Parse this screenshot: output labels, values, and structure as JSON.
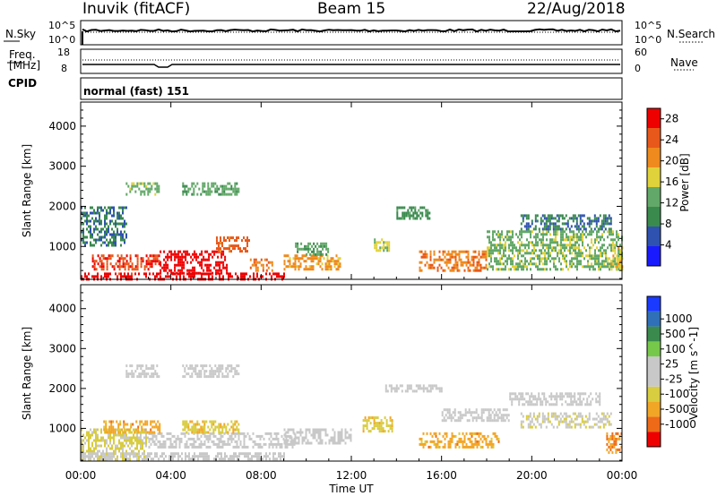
{
  "header": {
    "station": "Inuvik (fitACF)",
    "beam": "Beam 15",
    "date": "22/Aug/2018"
  },
  "top_panels": {
    "nsky_label": "N.Sky",
    "nsky_ticks": [
      "10^5",
      "10^0"
    ],
    "nsearch_label": "N.Search",
    "nsearch_ticks": [
      "10^5",
      "10^0"
    ],
    "freq_label_line1": "Freq.",
    "freq_label_line2": "[MHz]",
    "freq_ticks": [
      "18",
      "8"
    ],
    "nave_label": "Nave",
    "nave_ticks": [
      "60",
      "0"
    ],
    "cpid_label": "CPID",
    "cpid_text": "normal (fast) 151"
  },
  "chart_data": [
    {
      "type": "heatmap",
      "title": "",
      "ylabel": "Slant Range [km]",
      "xlabel": "",
      "x_ticks": [
        "00:00",
        "04:00",
        "08:00",
        "12:00",
        "16:00",
        "20:00",
        "00:00"
      ],
      "xlim_hours": [
        0,
        24
      ],
      "y_ticks": [
        1000,
        2000,
        3000,
        4000
      ],
      "ylim": [
        180,
        4600
      ],
      "colorbar": {
        "label": "Power [dB]",
        "ticks": [
          "4",
          "8",
          "12",
          "16",
          "20",
          "24",
          "28"
        ],
        "range": [
          0,
          30
        ],
        "colors": [
          "#1a1aff",
          "#2f52b0",
          "#3a8a4e",
          "#62a868",
          "#e0d23a",
          "#ee8a1e",
          "#e8581a",
          "#ee0000"
        ]
      },
      "regions": [
        {
          "x": [
            0.0,
            9.0
          ],
          "y": [
            200,
            350
          ],
          "value": 28
        },
        {
          "x": [
            0.5,
            3.5
          ],
          "y": [
            400,
            800
          ],
          "value": 26
        },
        {
          "x": [
            3.5,
            6.5
          ],
          "y": [
            350,
            900
          ],
          "value": 29
        },
        {
          "x": [
            6.0,
            7.5
          ],
          "y": [
            900,
            1250
          ],
          "value": 24
        },
        {
          "x": [
            7.5,
            8.5
          ],
          "y": [
            400,
            700
          ],
          "value": 22
        },
        {
          "x": [
            9.0,
            11.5
          ],
          "y": [
            400,
            800
          ],
          "value": 20
        },
        {
          "x": [
            9.5,
            11.0
          ],
          "y": [
            800,
            1100
          ],
          "value": 12
        },
        {
          "x": [
            13.0,
            13.7
          ],
          "y": [
            900,
            1200
          ],
          "value": 16
        },
        {
          "x": [
            15.0,
            18.0
          ],
          "y": [
            400,
            900
          ],
          "value": 22
        },
        {
          "x": [
            14.0,
            15.5
          ],
          "y": [
            1700,
            2000
          ],
          "value": 10
        },
        {
          "x": [
            18.0,
            24.0
          ],
          "y": [
            400,
            1400
          ],
          "value": 14
        },
        {
          "x": [
            19.5,
            23.5
          ],
          "y": [
            1400,
            1800
          ],
          "value": 8
        },
        {
          "x": [
            0.0,
            2.0
          ],
          "y": [
            1000,
            2000
          ],
          "value": 8
        },
        {
          "x": [
            2.0,
            3.5
          ],
          "y": [
            2300,
            2600
          ],
          "value": 14
        },
        {
          "x": [
            4.5,
            7.0
          ],
          "y": [
            2300,
            2600
          ],
          "value": 12
        },
        {
          "x": [
            23.5,
            24.0
          ],
          "y": [
            400,
            1000
          ],
          "value": 18
        }
      ]
    },
    {
      "type": "heatmap",
      "title": "",
      "ylabel": "Slant Range [km]",
      "xlabel": "Time UT",
      "x_ticks": [
        "00:00",
        "04:00",
        "08:00",
        "12:00",
        "16:00",
        "20:00",
        "00:00"
      ],
      "xlim_hours": [
        0,
        24
      ],
      "y_ticks": [
        1000,
        2000,
        3000,
        4000
      ],
      "ylim": [
        180,
        4600
      ],
      "colorbar": {
        "label": "Velocity [m s^-1]",
        "ticks": [
          "1000",
          "500",
          "100",
          "25",
          "-25",
          "-100",
          "-500",
          "-1000"
        ],
        "range": [
          -1200,
          1200
        ],
        "colors": [
          "#ee0000",
          "#ee6a18",
          "#f2a626",
          "#d8cc40",
          "#c8c8c8",
          "#c8c8c8",
          "#76c84a",
          "#3a8a4e",
          "#2f70b8",
          "#1a3aff"
        ]
      },
      "regions": [
        {
          "x": [
            0.0,
            3.0
          ],
          "y": [
            200,
            1000
          ],
          "value": -300
        },
        {
          "x": [
            3.0,
            9.5
          ],
          "y": [
            500,
            900
          ],
          "value": 0
        },
        {
          "x": [
            1.0,
            3.5
          ],
          "y": [
            900,
            1200
          ],
          "value": -600
        },
        {
          "x": [
            4.5,
            7.0
          ],
          "y": [
            900,
            1200
          ],
          "value": -400
        },
        {
          "x": [
            9.0,
            12.0
          ],
          "y": [
            600,
            1000
          ],
          "value": 0
        },
        {
          "x": [
            12.5,
            13.8
          ],
          "y": [
            900,
            1300
          ],
          "value": -400
        },
        {
          "x": [
            15.0,
            18.5
          ],
          "y": [
            500,
            900
          ],
          "value": -600
        },
        {
          "x": [
            16.0,
            19.0
          ],
          "y": [
            1200,
            1500
          ],
          "value": 0
        },
        {
          "x": [
            19.5,
            23.5
          ],
          "y": [
            1000,
            1400
          ],
          "value": -200
        },
        {
          "x": [
            19.0,
            23.0
          ],
          "y": [
            1600,
            1900
          ],
          "value": 0
        },
        {
          "x": [
            2.0,
            3.5
          ],
          "y": [
            2300,
            2600
          ],
          "value": 0
        },
        {
          "x": [
            4.5,
            7.0
          ],
          "y": [
            2300,
            2600
          ],
          "value": 0
        },
        {
          "x": [
            13.5,
            16.0
          ],
          "y": [
            1900,
            2100
          ],
          "value": 0
        },
        {
          "x": [
            23.3,
            24.0
          ],
          "y": [
            400,
            900
          ],
          "value": -700
        },
        {
          "x": [
            0.0,
            9.0
          ],
          "y": [
            200,
            400
          ],
          "value": 80
        }
      ]
    }
  ]
}
